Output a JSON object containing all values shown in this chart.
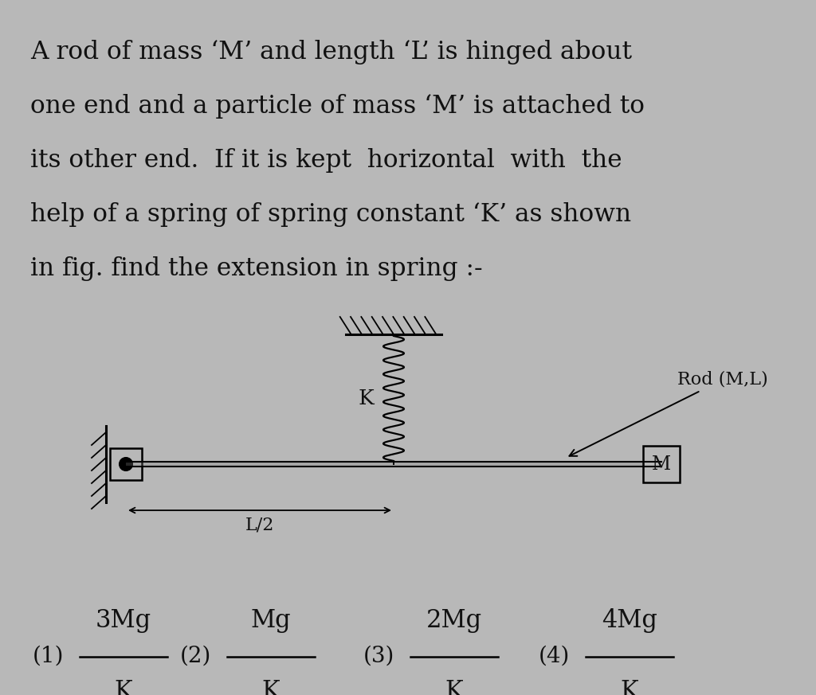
{
  "background_color": "#b8b8b8",
  "text_color": "#111111",
  "title_lines": [
    "A rod of mass ‘M’ and length ‘L’ is hinged about",
    "one end and a particle of mass ‘M’ is attached to",
    "its other end.  If it is kept  horizontal  with  the",
    "help of a spring of spring constant ‘K’ as shown",
    "in fig. find the extension in spring :-"
  ],
  "options": [
    {
      "num": "(1)",
      "numer": "3Mg",
      "denom": "K"
    },
    {
      "num": "(2)",
      "numer": "Mg",
      "denom": "K"
    },
    {
      "num": "(3)",
      "numer": "2Mg",
      "denom": "K"
    },
    {
      "num": "(4)",
      "numer": "4Mg",
      "denom": "K"
    }
  ],
  "fig_width": 10.24,
  "fig_height": 8.73,
  "dpi": 100
}
